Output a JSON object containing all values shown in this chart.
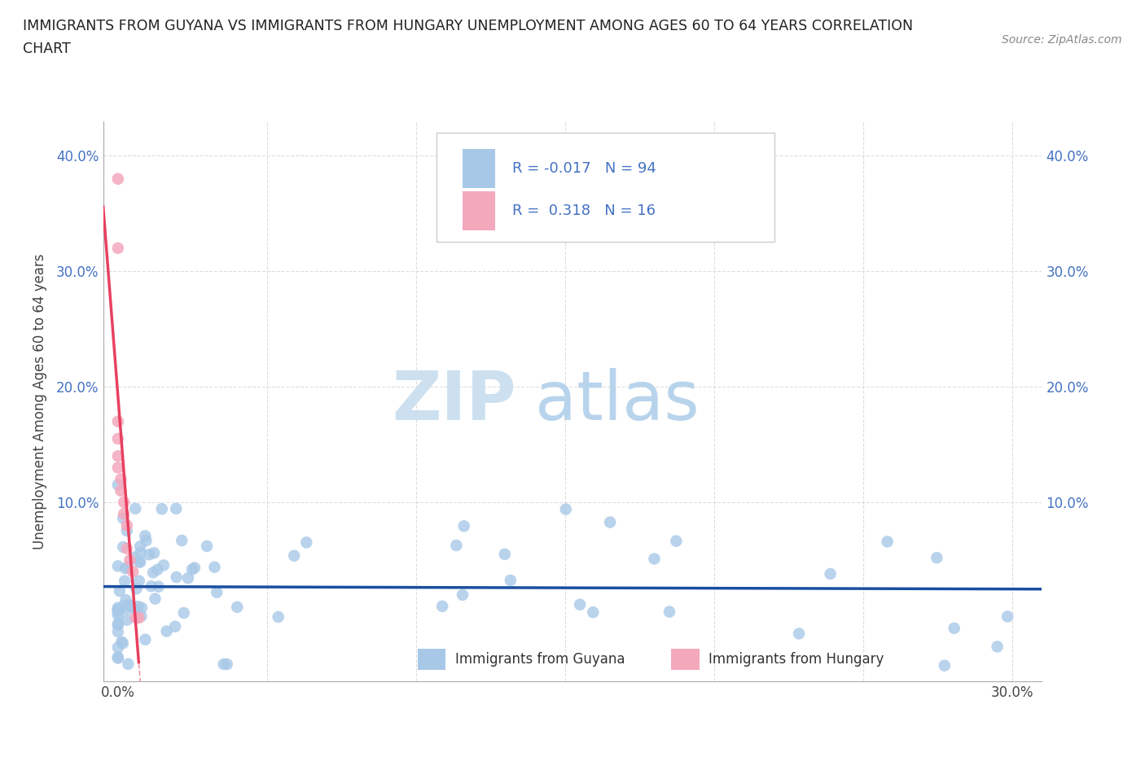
{
  "title_line1": "IMMIGRANTS FROM GUYANA VS IMMIGRANTS FROM HUNGARY UNEMPLOYMENT AMONG AGES 60 TO 64 YEARS CORRELATION",
  "title_line2": "CHART",
  "source": "Source: ZipAtlas.com",
  "ylabel": "Unemployment Among Ages 60 to 64 years",
  "xlim": [
    -0.005,
    0.31
  ],
  "ylim": [
    -0.055,
    0.43
  ],
  "xtick_positions": [
    0.0,
    0.05,
    0.1,
    0.15,
    0.2,
    0.25,
    0.3
  ],
  "xtick_labels": [
    "0.0%",
    "",
    "",
    "",
    "",
    "",
    "30.0%"
  ],
  "ytick_positions": [
    0.0,
    0.1,
    0.2,
    0.3,
    0.4
  ],
  "ytick_labels": [
    "",
    "10.0%",
    "20.0%",
    "30.0%",
    "40.0%"
  ],
  "guyana_color": "#a8c8e8",
  "hungary_color": "#f4a8bc",
  "trend_guyana_color": "#1a4fa0",
  "trend_hungary_color": "#e84060",
  "R_guyana": -0.017,
  "N_guyana": 94,
  "R_hungary": 0.318,
  "N_hungary": 16,
  "watermark_zip_color": "#cce0f0",
  "watermark_atlas_color": "#b8d4ec",
  "background_color": "#ffffff",
  "grid_color": "#dddddd",
  "ytick_color": "#4472c4",
  "text_color": "#444444",
  "hungary_x": [
    0.0,
    0.0,
    0.0,
    0.0,
    0.0,
    0.0,
    0.001,
    0.001,
    0.002,
    0.002,
    0.003,
    0.003,
    0.004,
    0.005,
    0.006,
    0.007
  ],
  "hungary_y": [
    0.38,
    0.32,
    0.17,
    0.155,
    0.14,
    0.13,
    0.12,
    0.11,
    0.1,
    0.09,
    0.08,
    0.06,
    0.05,
    0.04,
    0.0,
    0.0
  ]
}
